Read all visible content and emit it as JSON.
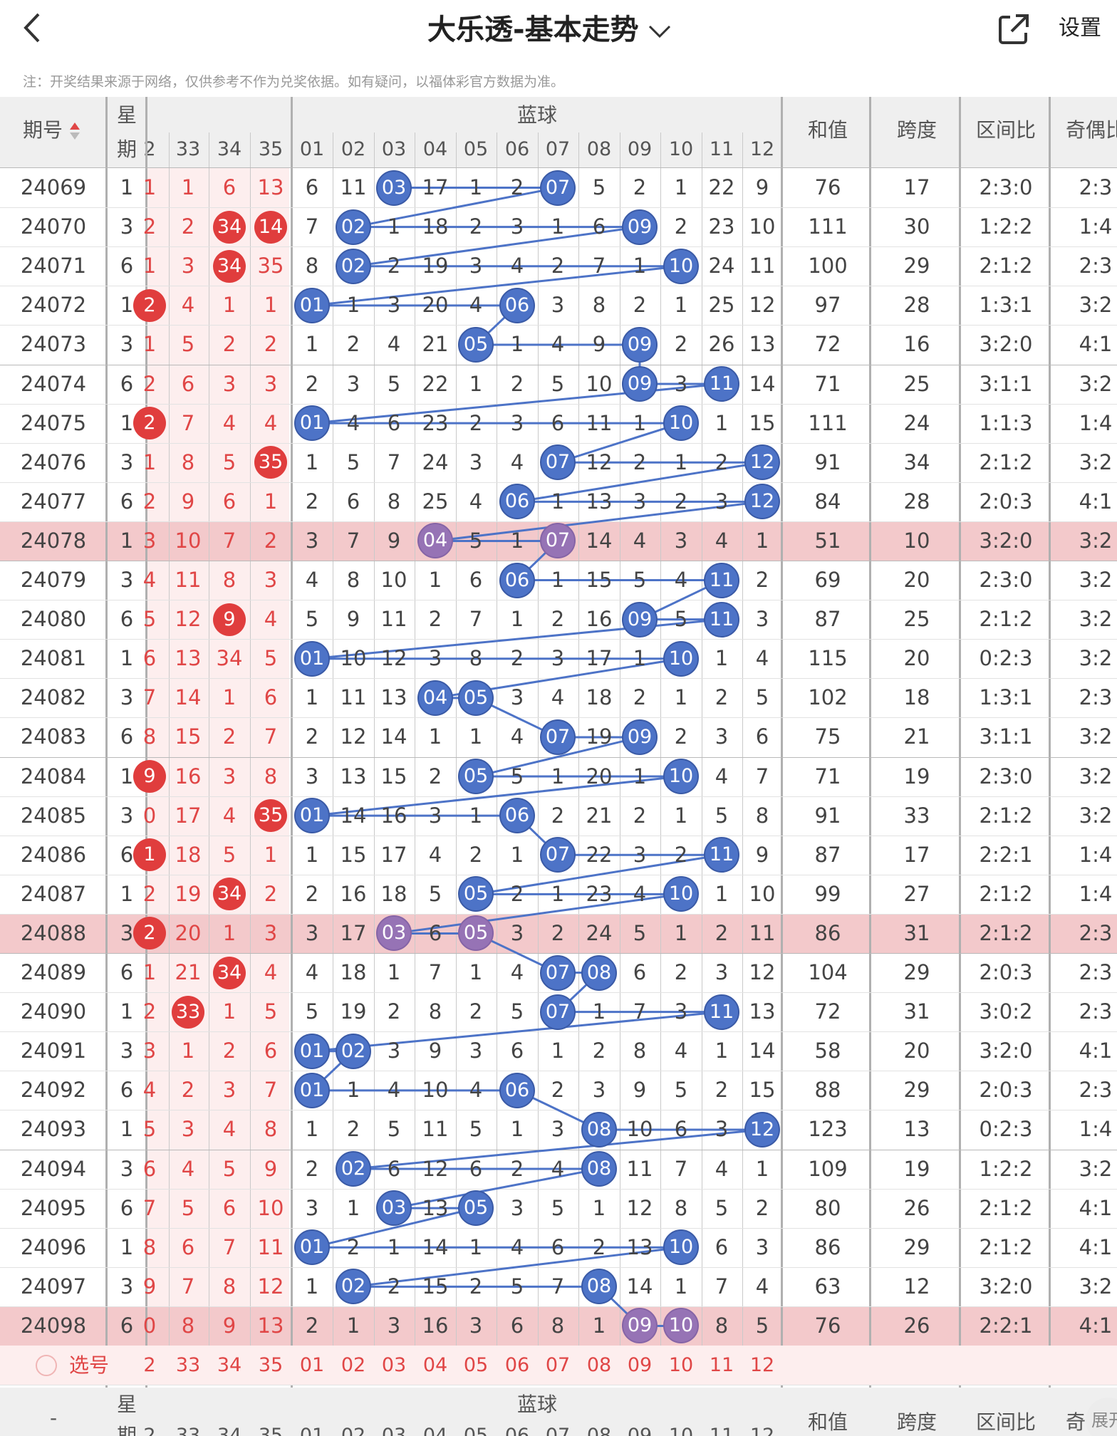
{
  "header": {
    "back_icon": "chevron-left-icon",
    "title": "大乐透-基本走势",
    "dropdown_icon": "chevron-down-icon",
    "share_icon": "share-icon",
    "settings_label": "设置"
  },
  "note": "注：开奖结果来源于网络，仅供参考不作为兑奖依据。如有疑问，以福体彩官方数据为准。",
  "colors": {
    "blue_ball": "#4d73c7",
    "red_ball": "#e03d3d",
    "highlight_row": "#f3c9cb",
    "highlight_ball": "#9673b5",
    "red_zone": "#fdeeee"
  },
  "table": {
    "header": {
      "issue": "期号",
      "sort_icon": "sort-arrow-icon",
      "weekday_top": "星",
      "weekday_bottom": "期",
      "blue_group": "蓝球",
      "red_cols": [
        "2",
        "33",
        "34",
        "35"
      ],
      "blue_cols": [
        "01",
        "02",
        "03",
        "04",
        "05",
        "06",
        "07",
        "08",
        "09",
        "10",
        "11",
        "12"
      ],
      "sum": "和值",
      "span": "跨度",
      "zone_ratio": "区间比",
      "odd_even": "奇偶比"
    },
    "rows": [
      {
        "issue": "24069",
        "wd": "1",
        "red": [
          "1",
          "1",
          "6",
          "13"
        ],
        "blue": [
          "6",
          "11",
          "03",
          "17",
          "1",
          "2",
          "07",
          "5",
          "2",
          "1",
          "22",
          "9"
        ],
        "sum": "76",
        "span": "17",
        "zone": "2:3:0",
        "oe": "2:3",
        "hl": false
      },
      {
        "issue": "24070",
        "wd": "3",
        "red": [
          "2",
          "2",
          "34",
          "14"
        ],
        "blue": [
          "7",
          "02",
          "1",
          "18",
          "2",
          "3",
          "1",
          "6",
          "09",
          "2",
          "23",
          "10"
        ],
        "sum": "111",
        "span": "30",
        "zone": "1:2:2",
        "oe": "1:4",
        "hl": false
      },
      {
        "issue": "24071",
        "wd": "6",
        "red": [
          "1",
          "3",
          "34",
          "35"
        ],
        "blue": [
          "8",
          "02",
          "2",
          "19",
          "3",
          "4",
          "2",
          "7",
          "1",
          "10",
          "24",
          "11"
        ],
        "sum": "100",
        "span": "29",
        "zone": "2:1:2",
        "oe": "2:3",
        "hl": false
      },
      {
        "issue": "24072",
        "wd": "1",
        "red": [
          "2",
          "4",
          "1",
          "1"
        ],
        "blue": [
          "01",
          "1",
          "3",
          "20",
          "4",
          "06",
          "3",
          "8",
          "2",
          "1",
          "25",
          "12"
        ],
        "sum": "97",
        "span": "28",
        "zone": "1:3:1",
        "oe": "3:2",
        "hl": false
      },
      {
        "issue": "24073",
        "wd": "3",
        "red": [
          "1",
          "5",
          "2",
          "2"
        ],
        "blue": [
          "1",
          "2",
          "4",
          "21",
          "05",
          "1",
          "4",
          "9",
          "09",
          "2",
          "26",
          "13"
        ],
        "sum": "72",
        "span": "16",
        "zone": "3:2:0",
        "oe": "4:1",
        "hl": false
      },
      {
        "issue": "24074",
        "wd": "6",
        "red": [
          "2",
          "6",
          "3",
          "3"
        ],
        "blue": [
          "2",
          "3",
          "5",
          "22",
          "1",
          "2",
          "5",
          "10",
          "09",
          "3",
          "11",
          "14"
        ],
        "sum": "71",
        "span": "25",
        "zone": "3:1:1",
        "oe": "3:2",
        "hl": false
      },
      {
        "issue": "24075",
        "wd": "1",
        "red": [
          "2",
          "7",
          "4",
          "4"
        ],
        "blue": [
          "01",
          "4",
          "6",
          "23",
          "2",
          "3",
          "6",
          "11",
          "1",
          "10",
          "1",
          "15"
        ],
        "sum": "111",
        "span": "24",
        "zone": "1:1:3",
        "oe": "1:4",
        "hl": false
      },
      {
        "issue": "24076",
        "wd": "3",
        "red": [
          "1",
          "8",
          "5",
          "35"
        ],
        "blue": [
          "1",
          "5",
          "7",
          "24",
          "3",
          "4",
          "07",
          "12",
          "2",
          "1",
          "2",
          "12"
        ],
        "sum": "91",
        "span": "34",
        "zone": "2:1:2",
        "oe": "3:2",
        "hl": false
      },
      {
        "issue": "24077",
        "wd": "6",
        "red": [
          "2",
          "9",
          "6",
          "1"
        ],
        "blue": [
          "2",
          "6",
          "8",
          "25",
          "4",
          "06",
          "1",
          "13",
          "3",
          "2",
          "3",
          "12"
        ],
        "sum": "84",
        "span": "28",
        "zone": "2:0:3",
        "oe": "4:1",
        "hl": false
      },
      {
        "issue": "24078",
        "wd": "1",
        "red": [
          "3",
          "10",
          "7",
          "2"
        ],
        "blue": [
          "3",
          "7",
          "9",
          "04",
          "5",
          "1",
          "07",
          "14",
          "4",
          "3",
          "4",
          "1"
        ],
        "sum": "51",
        "span": "10",
        "zone": "3:2:0",
        "oe": "3:2",
        "hl": true
      },
      {
        "issue": "24079",
        "wd": "3",
        "red": [
          "4",
          "11",
          "8",
          "3"
        ],
        "blue": [
          "4",
          "8",
          "10",
          "1",
          "6",
          "06",
          "1",
          "15",
          "5",
          "4",
          "11",
          "2"
        ],
        "sum": "69",
        "span": "20",
        "zone": "2:3:0",
        "oe": "3:2",
        "hl": false
      },
      {
        "issue": "24080",
        "wd": "6",
        "red": [
          "5",
          "12",
          "9",
          "4"
        ],
        "blue": [
          "5",
          "9",
          "11",
          "2",
          "7",
          "1",
          "2",
          "16",
          "09",
          "5",
          "11",
          "3"
        ],
        "sum": "87",
        "span": "25",
        "zone": "2:1:2",
        "oe": "3:2",
        "hl": false
      },
      {
        "issue": "24081",
        "wd": "1",
        "red": [
          "6",
          "13",
          "34",
          "5"
        ],
        "blue": [
          "01",
          "10",
          "12",
          "3",
          "8",
          "2",
          "3",
          "17",
          "1",
          "10",
          "1",
          "4"
        ],
        "sum": "115",
        "span": "20",
        "zone": "0:2:3",
        "oe": "3:2",
        "hl": false
      },
      {
        "issue": "24082",
        "wd": "3",
        "red": [
          "7",
          "14",
          "1",
          "6"
        ],
        "blue": [
          "1",
          "11",
          "13",
          "04",
          "05",
          "3",
          "4",
          "18",
          "2",
          "1",
          "2",
          "5"
        ],
        "sum": "102",
        "span": "18",
        "zone": "1:3:1",
        "oe": "2:3",
        "hl": false
      },
      {
        "issue": "24083",
        "wd": "6",
        "red": [
          "8",
          "15",
          "2",
          "7"
        ],
        "blue": [
          "2",
          "12",
          "14",
          "1",
          "1",
          "4",
          "07",
          "19",
          "09",
          "2",
          "3",
          "6"
        ],
        "sum": "75",
        "span": "21",
        "zone": "3:1:1",
        "oe": "3:2",
        "hl": false
      },
      {
        "issue": "24084",
        "wd": "1",
        "red": [
          "9",
          "16",
          "3",
          "8"
        ],
        "blue": [
          "3",
          "13",
          "15",
          "2",
          "05",
          "5",
          "1",
          "20",
          "1",
          "10",
          "4",
          "7"
        ],
        "sum": "71",
        "span": "19",
        "zone": "2:3:0",
        "oe": "3:2",
        "hl": false
      },
      {
        "issue": "24085",
        "wd": "3",
        "red": [
          "0",
          "17",
          "4",
          "35"
        ],
        "blue": [
          "01",
          "14",
          "16",
          "3",
          "1",
          "06",
          "2",
          "21",
          "2",
          "1",
          "5",
          "8"
        ],
        "sum": "91",
        "span": "33",
        "zone": "2:1:2",
        "oe": "3:2",
        "hl": false
      },
      {
        "issue": "24086",
        "wd": "6",
        "red": [
          "1",
          "18",
          "5",
          "1"
        ],
        "blue": [
          "1",
          "15",
          "17",
          "4",
          "2",
          "1",
          "07",
          "22",
          "3",
          "2",
          "11",
          "9"
        ],
        "sum": "87",
        "span": "17",
        "zone": "2:2:1",
        "oe": "1:4",
        "hl": false
      },
      {
        "issue": "24087",
        "wd": "1",
        "red": [
          "2",
          "19",
          "34",
          "2"
        ],
        "blue": [
          "2",
          "16",
          "18",
          "5",
          "05",
          "2",
          "1",
          "23",
          "4",
          "10",
          "1",
          "10"
        ],
        "sum": "99",
        "span": "27",
        "zone": "2:1:2",
        "oe": "1:4",
        "hl": false
      },
      {
        "issue": "24088",
        "wd": "3",
        "red": [
          "2",
          "20",
          "1",
          "3"
        ],
        "blue": [
          "3",
          "17",
          "03",
          "6",
          "05",
          "3",
          "2",
          "24",
          "5",
          "1",
          "2",
          "11"
        ],
        "sum": "86",
        "span": "31",
        "zone": "2:1:2",
        "oe": "2:3",
        "hl": true
      },
      {
        "issue": "24089",
        "wd": "6",
        "red": [
          "1",
          "21",
          "34",
          "4"
        ],
        "blue": [
          "4",
          "18",
          "1",
          "7",
          "1",
          "4",
          "07",
          "08",
          "6",
          "2",
          "3",
          "12"
        ],
        "sum": "104",
        "span": "29",
        "zone": "2:0:3",
        "oe": "2:3",
        "hl": false
      },
      {
        "issue": "24090",
        "wd": "1",
        "red": [
          "2",
          "33",
          "1",
          "5"
        ],
        "blue": [
          "5",
          "19",
          "2",
          "8",
          "2",
          "5",
          "07",
          "1",
          "7",
          "3",
          "11",
          "13"
        ],
        "sum": "72",
        "span": "31",
        "zone": "3:0:2",
        "oe": "2:3",
        "hl": false
      },
      {
        "issue": "24091",
        "wd": "3",
        "red": [
          "3",
          "1",
          "2",
          "6"
        ],
        "blue": [
          "01",
          "02",
          "3",
          "9",
          "3",
          "6",
          "1",
          "2",
          "8",
          "4",
          "1",
          "14"
        ],
        "sum": "58",
        "span": "20",
        "zone": "3:2:0",
        "oe": "4:1",
        "hl": false
      },
      {
        "issue": "24092",
        "wd": "6",
        "red": [
          "4",
          "2",
          "3",
          "7"
        ],
        "blue": [
          "01",
          "1",
          "4",
          "10",
          "4",
          "06",
          "2",
          "3",
          "9",
          "5",
          "2",
          "15"
        ],
        "sum": "88",
        "span": "29",
        "zone": "2:0:3",
        "oe": "2:3",
        "hl": false
      },
      {
        "issue": "24093",
        "wd": "1",
        "red": [
          "5",
          "3",
          "4",
          "8"
        ],
        "blue": [
          "1",
          "2",
          "5",
          "11",
          "5",
          "1",
          "3",
          "08",
          "10",
          "6",
          "3",
          "12"
        ],
        "sum": "123",
        "span": "13",
        "zone": "0:2:3",
        "oe": "1:4",
        "hl": false
      },
      {
        "issue": "24094",
        "wd": "3",
        "red": [
          "6",
          "4",
          "5",
          "9"
        ],
        "blue": [
          "2",
          "02",
          "6",
          "12",
          "6",
          "2",
          "4",
          "08",
          "11",
          "7",
          "4",
          "1"
        ],
        "sum": "109",
        "span": "19",
        "zone": "1:2:2",
        "oe": "3:2",
        "hl": false
      },
      {
        "issue": "24095",
        "wd": "6",
        "red": [
          "7",
          "5",
          "6",
          "10"
        ],
        "blue": [
          "3",
          "1",
          "03",
          "13",
          "05",
          "3",
          "5",
          "1",
          "12",
          "8",
          "5",
          "2"
        ],
        "sum": "80",
        "span": "26",
        "zone": "2:1:2",
        "oe": "4:1",
        "hl": false
      },
      {
        "issue": "24096",
        "wd": "1",
        "red": [
          "8",
          "6",
          "7",
          "11"
        ],
        "blue": [
          "01",
          "2",
          "1",
          "14",
          "1",
          "4",
          "6",
          "2",
          "13",
          "10",
          "6",
          "3"
        ],
        "sum": "86",
        "span": "29",
        "zone": "2:1:2",
        "oe": "4:1",
        "hl": false
      },
      {
        "issue": "24097",
        "wd": "3",
        "red": [
          "9",
          "7",
          "8",
          "12"
        ],
        "blue": [
          "1",
          "02",
          "2",
          "15",
          "2",
          "5",
          "7",
          "08",
          "14",
          "1",
          "7",
          "4"
        ],
        "sum": "63",
        "span": "12",
        "zone": "3:2:0",
        "oe": "3:2",
        "hl": false
      },
      {
        "issue": "24098",
        "wd": "6",
        "red": [
          "0",
          "8",
          "9",
          "13"
        ],
        "blue": [
          "2",
          "1",
          "3",
          "16",
          "3",
          "6",
          "8",
          "1",
          "09",
          "10",
          "8",
          "5"
        ],
        "sum": "76",
        "span": "26",
        "zone": "2:2:1",
        "oe": "4:1",
        "hl": true
      }
    ],
    "red_balls": [
      [
        1,
        2
      ],
      [
        1,
        3
      ],
      [
        2,
        2
      ],
      [
        3,
        0
      ],
      [
        6,
        0
      ],
      [
        7,
        3
      ],
      [
        11,
        2
      ],
      [
        15,
        0
      ],
      [
        16,
        3
      ],
      [
        17,
        0
      ],
      [
        18,
        2
      ],
      [
        19,
        0
      ],
      [
        20,
        2
      ],
      [
        21,
        1
      ]
    ],
    "select_row": {
      "radio_label": "选号",
      "red_cols": [
        "2",
        "33",
        "34",
        "35"
      ],
      "blue_cols": [
        "01",
        "02",
        "03",
        "04",
        "05",
        "06",
        "07",
        "08",
        "09",
        "10",
        "11",
        "12"
      ]
    },
    "footer_header": {
      "issue": "-",
      "weekday_top": "星",
      "weekday_bottom": "期",
      "blue_group": "蓝球",
      "red_cols": [
        "2",
        "33",
        "34",
        "35"
      ],
      "blue_cols": [
        "01",
        "02",
        "03",
        "04",
        "05",
        "06",
        "07",
        "08",
        "09",
        "10",
        "11",
        "12"
      ],
      "sum": "和值",
      "span": "跨度",
      "zone_ratio": "区间比",
      "odd_even": "奇",
      "expand_label": "展开"
    }
  }
}
